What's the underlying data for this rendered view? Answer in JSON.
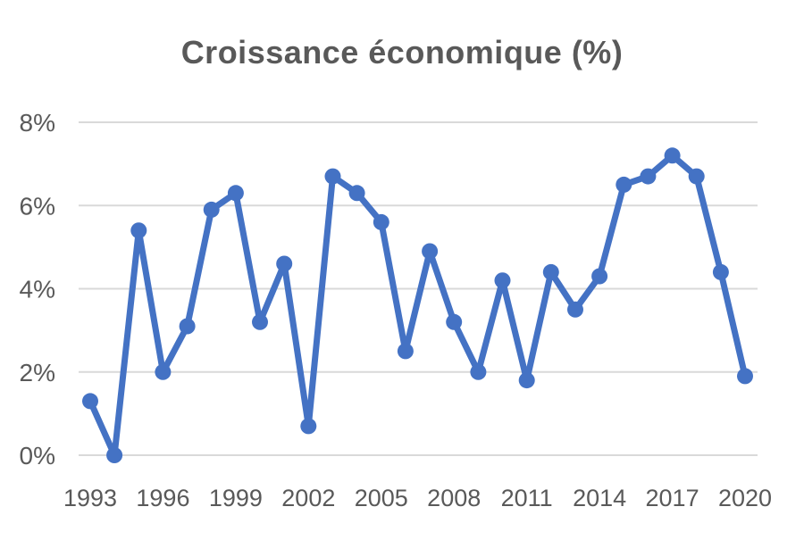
{
  "chart_data": {
    "type": "line",
    "title": "Croissance économique (%)",
    "xlabel": "",
    "ylabel": "",
    "ylim": [
      0,
      8
    ],
    "y_ticks": [
      "0%",
      "2%",
      "4%",
      "6%",
      "8%"
    ],
    "y_tick_values": [
      0,
      2,
      4,
      6,
      8
    ],
    "x_tick_labels": [
      "1993",
      "1996",
      "1999",
      "2002",
      "2005",
      "2008",
      "2011",
      "2014",
      "2017",
      "2020"
    ],
    "x_tick_values": [
      1993,
      1996,
      1999,
      2002,
      2005,
      2008,
      2011,
      2014,
      2017,
      2020
    ],
    "x_range": [
      1993,
      2020
    ],
    "grid": "horizontal",
    "legend": "none",
    "series": [
      {
        "color": "#4472C4",
        "x": [
          1993,
          1994,
          1995,
          1996,
          1997,
          1998,
          1999,
          2000,
          2001,
          2002,
          2003,
          2004,
          2005,
          2006,
          2007,
          2008,
          2009,
          2010,
          2011,
          2012,
          2013,
          2014,
          2015,
          2016,
          2017,
          2018,
          2019,
          2020
        ],
        "values": [
          1.3,
          0.0,
          5.4,
          2.0,
          3.1,
          5.9,
          6.3,
          3.2,
          4.6,
          0.7,
          6.7,
          6.3,
          5.6,
          2.5,
          4.9,
          3.2,
          2.0,
          4.2,
          1.8,
          4.4,
          3.5,
          4.3,
          6.5,
          6.7,
          7.2,
          6.7,
          4.4,
          1.9
        ]
      }
    ]
  }
}
